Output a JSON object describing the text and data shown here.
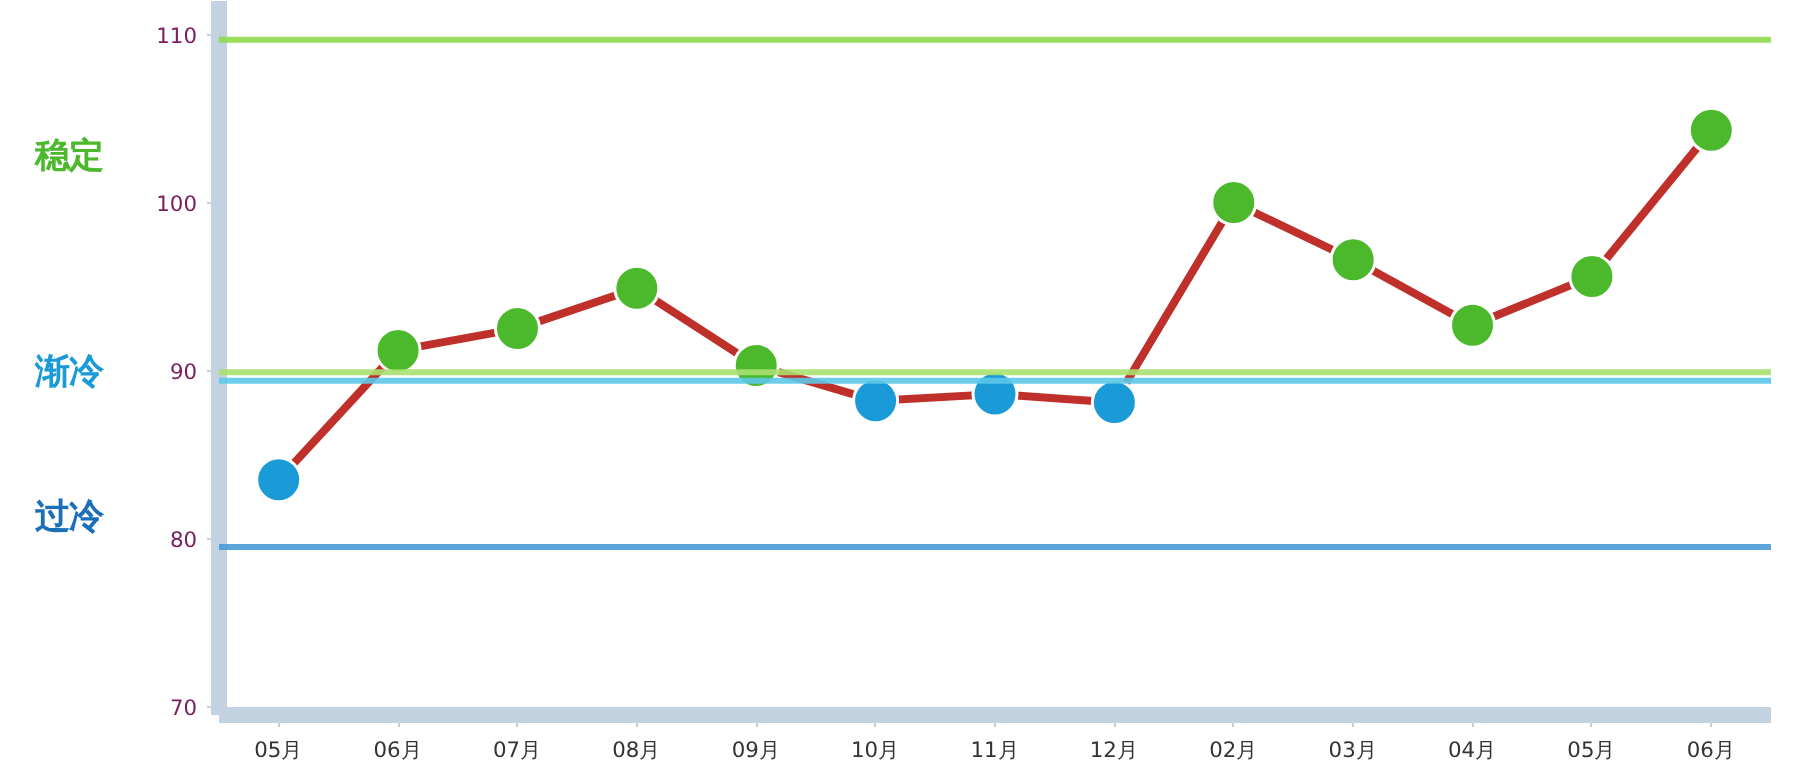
{
  "chart_data": {
    "type": "line",
    "categories": [
      "05月",
      "06月",
      "07月",
      "08月",
      "09月",
      "10月",
      "11月",
      "12月",
      "02月",
      "03月",
      "04月",
      "05月",
      "06月"
    ],
    "series": [
      {
        "color": "#c0302a",
        "values": [
          83.5,
          91.2,
          92.5,
          94.9,
          90.3,
          88.2,
          88.6,
          88.1,
          100,
          96.6,
          92.7,
          95.6,
          104.3
        ],
        "colors": [
          "#1a9ad6",
          "#4cb82c",
          "#4cb82c",
          "#4cb82c",
          "#4cb82c",
          "#1a9ad6",
          "#1a9ad6",
          "#1a9ad6",
          "#4cb82c",
          "#4cb82c",
          "#4cb82c",
          "#4cb82c",
          "#4cb82c"
        ]
      }
    ],
    "marker": "circle",
    "ylim": [
      69.5,
      112
    ],
    "yticks": [
      70,
      80,
      90,
      100,
      110
    ],
    "grid": false,
    "ref_lines": [
      {
        "axis": "y",
        "value": 109.7,
        "color": "#8fd84a"
      },
      {
        "axis": "y",
        "value": 89.9,
        "color": "#a8e070"
      },
      {
        "axis": "y",
        "value": 89.4,
        "color": "#5cc8e8"
      },
      {
        "axis": "y",
        "value": 79.5,
        "color": "#4a9ad8"
      }
    ],
    "annotations": [
      "稳定",
      "渐冷",
      "过冷"
    ]
  }
}
